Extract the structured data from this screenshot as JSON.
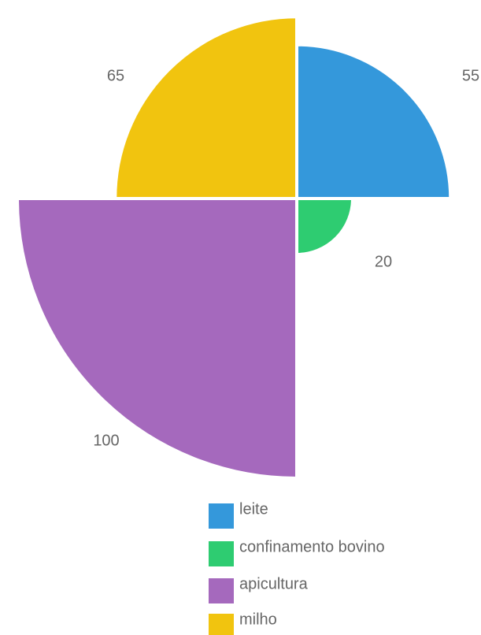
{
  "chart_data": {
    "type": "polarArea",
    "categories": [
      "leite",
      "confinamento bovino",
      "apicultura",
      "milho"
    ],
    "values": [
      55,
      20,
      100,
      65
    ],
    "colors": [
      "#3498db",
      "#2ecc71",
      "#a569bd",
      "#f1c40f"
    ],
    "rlim": [
      0,
      100
    ],
    "legend": "bottom"
  }
}
